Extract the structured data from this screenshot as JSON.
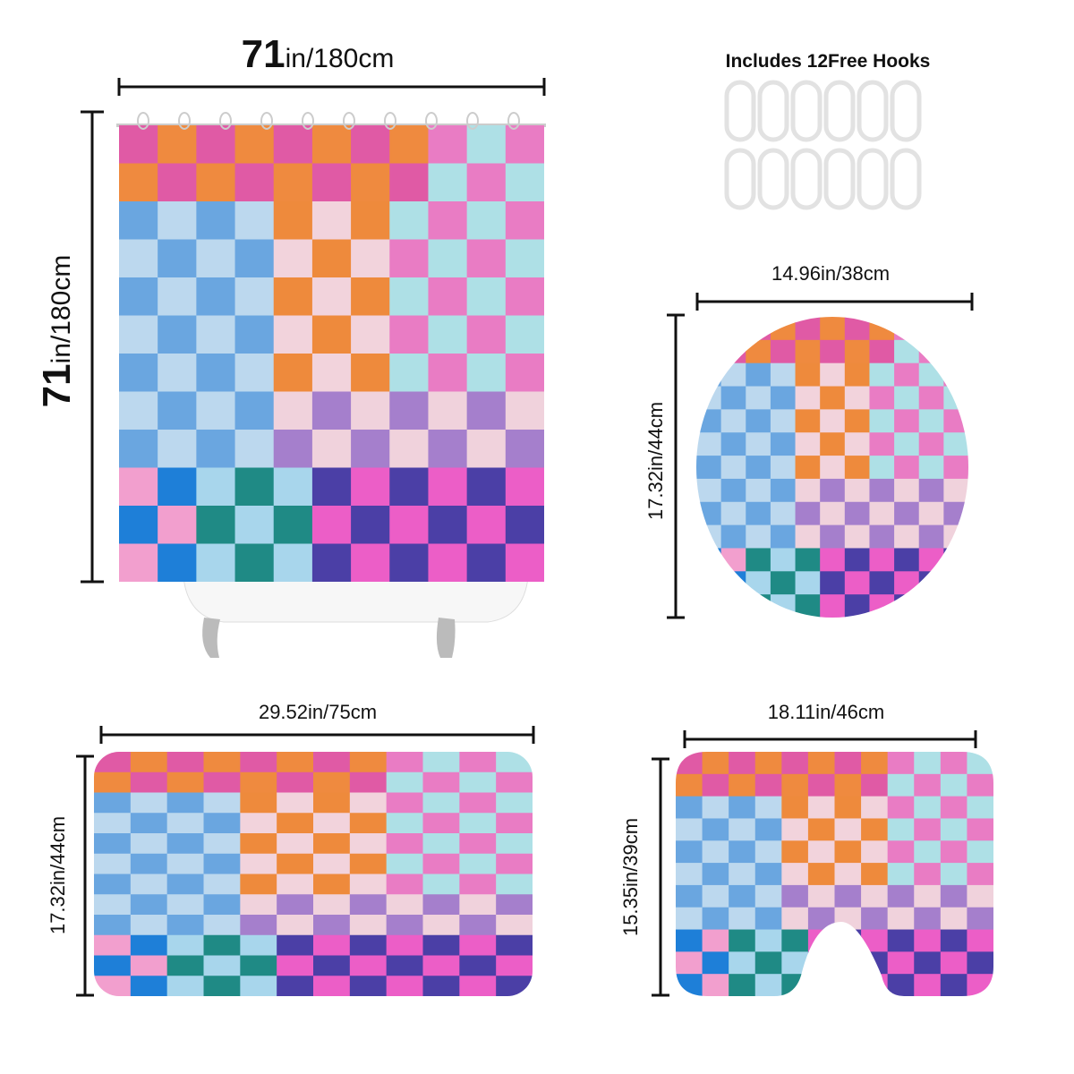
{
  "shower_curtain": {
    "width": {
      "number": "71",
      "unit": "in/180cm"
    },
    "height": {
      "number": "71",
      "unit": "in/180cm"
    }
  },
  "hooks": {
    "label": "Includes 12Free Hooks"
  },
  "lid_cover": {
    "width": "14.96in/38cm",
    "height": "17.32in/44cm"
  },
  "bath_mat": {
    "width": "29.52in/75cm",
    "height": "17.32in/44cm"
  },
  "contour_mat": {
    "width": "18.11in/46cm",
    "height": "15.35in/39cm"
  }
}
